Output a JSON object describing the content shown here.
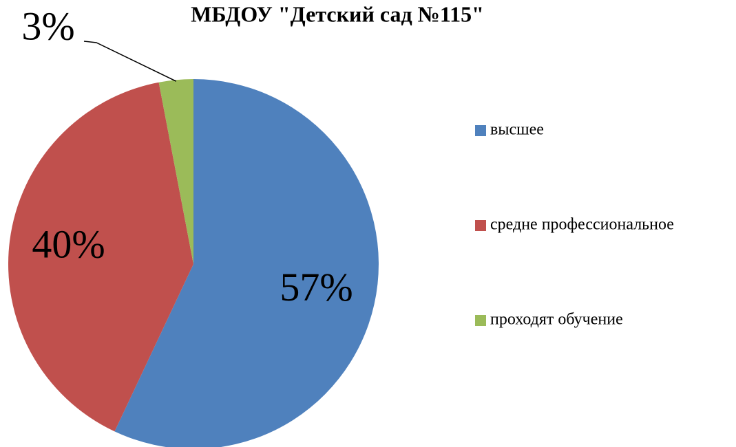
{
  "chart_data": {
    "type": "pie",
    "title": "МБДОУ \"Детский сад №115\"",
    "categories": [
      "высшее",
      "средне профессиональное",
      "проходят обучение"
    ],
    "values": [
      57,
      40,
      3
    ],
    "value_labels": [
      "57%",
      "40%",
      "3%"
    ],
    "colors": [
      "#4f81bd",
      "#c0504d",
      "#9bbb59"
    ],
    "legend": "right"
  }
}
